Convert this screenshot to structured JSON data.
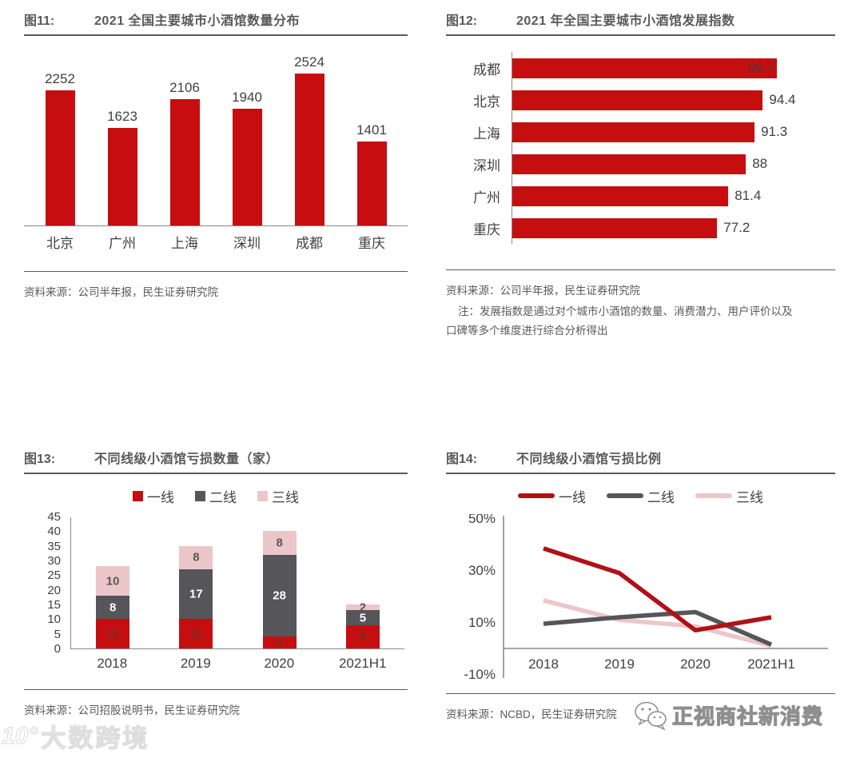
{
  "colors": {
    "red": "#C60D0F",
    "line_red": "#B01116",
    "gray_bar": "#55555A",
    "pink": "#ECC6C9",
    "label_on_red": "#7A2B28",
    "label_on_gray": "#FFFFFF",
    "label_on_pink": "#595959",
    "axis_line": "#898989",
    "text_dark": "#404040",
    "text_gray": "#595959"
  },
  "watermarks": {
    "bottom_left_logo": "10°",
    "bottom_left": "大数跨境",
    "bottom_right": "正视商社新消费"
  },
  "chart_data": [
    {
      "id": "fig11",
      "tag": "图11:",
      "title": "2021 全国主要城市小酒馆数量分布",
      "type": "bar",
      "categories": [
        "北京",
        "广州",
        "上海",
        "深圳",
        "成都",
        "重庆"
      ],
      "values": [
        2252,
        1623,
        2106,
        1940,
        2524,
        1401
      ],
      "ylim": [
        0,
        2600
      ],
      "grid": false,
      "source": "资料来源：公司半年报，民生证券研究院"
    },
    {
      "id": "fig12",
      "tag": "图12:",
      "title": "2021 年全国主要城市小酒馆发展指数",
      "type": "bar",
      "orientation": "horizontal",
      "categories": [
        "成都",
        "北京",
        "上海",
        "深圳",
        "广州",
        "重庆"
      ],
      "values": [
        99.7,
        94.4,
        91.3,
        88,
        81.4,
        77.2
      ],
      "xlim": [
        0,
        100
      ],
      "grid": false,
      "source": "资料来源：公司半年报，民生证券研究院",
      "note_line1": "注：发展指数是通过对个城市小酒馆的数量、消费潜力、用户评价以及",
      "note_line2": "口碑等多个维度进行综合分析得出"
    },
    {
      "id": "fig13",
      "tag": "图13:",
      "title": "不同线级小酒馆亏损数量（家）",
      "type": "bar",
      "stacked": true,
      "categories": [
        "2018",
        "2019",
        "2020",
        "2021H1"
      ],
      "series": [
        {
          "name": "一线",
          "color_key": "red",
          "values": [
            10,
            10,
            4,
            8
          ]
        },
        {
          "name": "二线",
          "color_key": "gray_bar",
          "values": [
            8,
            17,
            28,
            5
          ]
        },
        {
          "name": "三线",
          "color_key": "pink",
          "values": [
            10,
            8,
            8,
            2
          ]
        }
      ],
      "yticks": [
        0,
        5,
        10,
        15,
        20,
        25,
        30,
        35,
        40,
        45
      ],
      "ylim": [
        0,
        45
      ],
      "grid": false,
      "legend_position": "top",
      "source": "资料来源：公司招股说明书，民生证券研究院"
    },
    {
      "id": "fig14",
      "tag": "图14:",
      "title": "不同线级小酒馆亏损比例",
      "type": "line",
      "categories": [
        "2018",
        "2019",
        "2020",
        "2021H1"
      ],
      "series": [
        {
          "name": "一线",
          "color_key": "line_red",
          "values": [
            38.5,
            29,
            7,
            12
          ]
        },
        {
          "name": "二线",
          "color_key": "gray_bar",
          "values": [
            9.5,
            12,
            14,
            1.5
          ]
        },
        {
          "name": "三线",
          "color_key": "pink",
          "values": [
            18.5,
            11,
            8.5,
            1
          ]
        }
      ],
      "ytick_labels": [
        "50%",
        "30%",
        "10%",
        "-10%"
      ],
      "yticks_pct": [
        50,
        30,
        10,
        -10
      ],
      "ylim": [
        -10,
        50
      ],
      "grid": false,
      "legend_position": "top",
      "source": "资料来源：NCBD，民生证券研究院"
    }
  ]
}
